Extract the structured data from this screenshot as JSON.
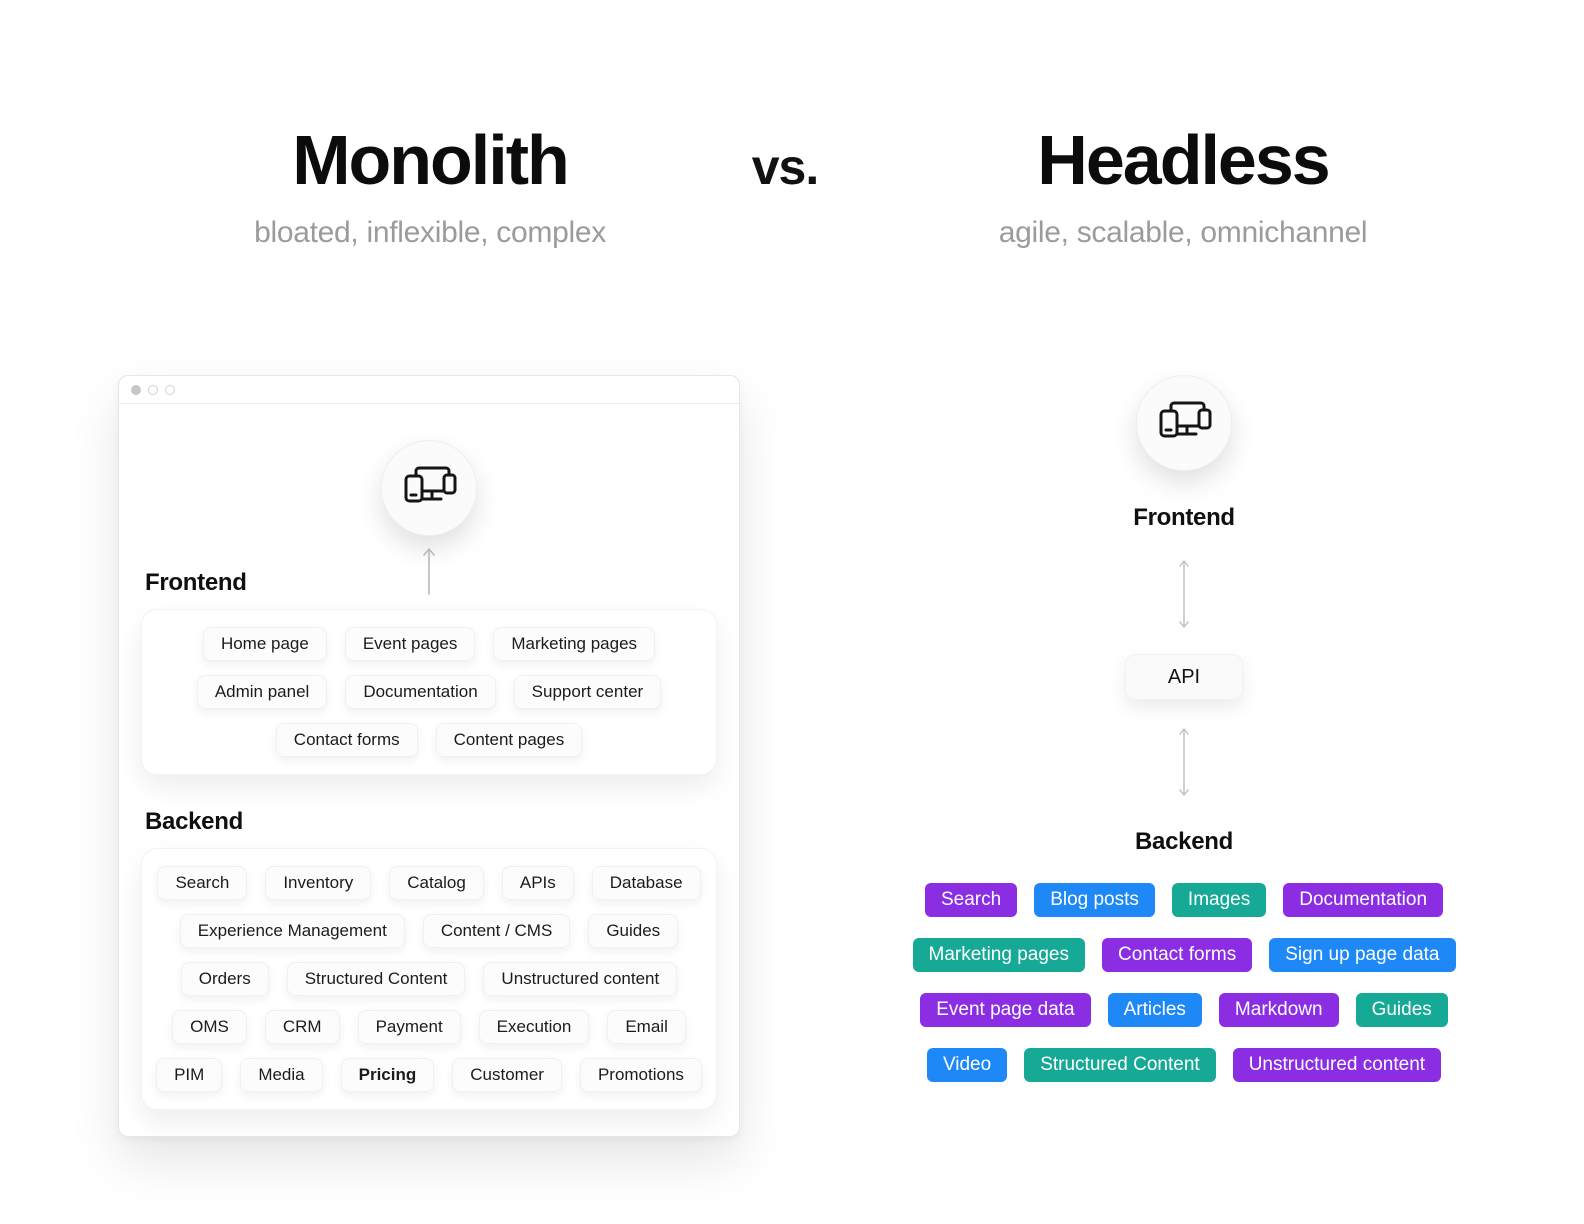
{
  "header": {
    "left_title": "Monolith",
    "left_subtitle": "bloated, inflexible, complex",
    "versus": "vs.",
    "right_title": "Headless",
    "right_subtitle": "agile, scalable, omnichannel"
  },
  "colors": {
    "purple": "#8B2DE2",
    "blue": "#1E88F7",
    "teal": "#16A995"
  },
  "monolith": {
    "frontend_label": "Frontend",
    "backend_label": "Backend",
    "bold_chip_labels": [
      "Pricing"
    ],
    "frontend_rows": [
      [
        "Home page",
        "Event pages",
        "Marketing pages"
      ],
      [
        "Admin panel",
        "Documentation",
        "Support center"
      ],
      [
        "Contact forms",
        "Content pages"
      ]
    ],
    "backend_rows": [
      [
        "Search",
        "Inventory",
        "Catalog",
        "APIs",
        "Database"
      ],
      [
        "Experience Management",
        "Content / CMS",
        "Guides"
      ],
      [
        "Orders",
        "Structured Content",
        "Unstructured content"
      ],
      [
        "OMS",
        "CRM",
        "Payment",
        "Execution",
        "Email"
      ],
      [
        "PIM",
        "Media",
        "Pricing",
        "Customer",
        "Promotions"
      ]
    ]
  },
  "headless": {
    "frontend_label": "Frontend",
    "api_label": "API",
    "backend_label": "Backend",
    "rows": [
      [
        {
          "label": "Search",
          "color": "purple"
        },
        {
          "label": "Blog posts",
          "color": "blue"
        },
        {
          "label": "Images",
          "color": "teal"
        },
        {
          "label": "Documentation",
          "color": "purple"
        }
      ],
      [
        {
          "label": "Marketing pages",
          "color": "teal"
        },
        {
          "label": "Contact forms",
          "color": "purple"
        },
        {
          "label": "Sign up page data",
          "color": "blue"
        }
      ],
      [
        {
          "label": "Event page data",
          "color": "purple"
        },
        {
          "label": "Articles",
          "color": "blue"
        },
        {
          "label": "Markdown",
          "color": "purple"
        },
        {
          "label": "Guides",
          "color": "teal"
        }
      ],
      [
        {
          "label": "Video",
          "color": "blue"
        },
        {
          "label": "Structured Content",
          "color": "teal"
        },
        {
          "label": "Unstructured content",
          "color": "purple"
        }
      ]
    ]
  }
}
